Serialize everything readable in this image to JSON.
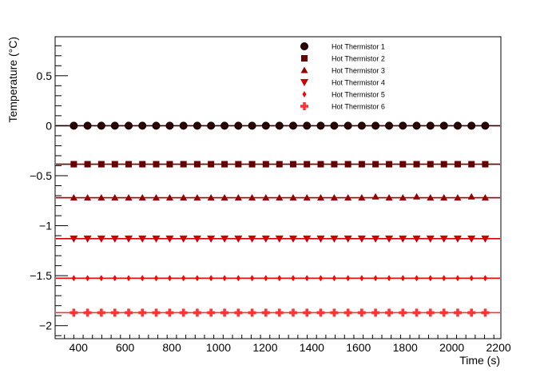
{
  "chart_data": {
    "type": "scatter",
    "xlabel": "Time (s)",
    "ylabel": "Temperature (°C)",
    "xlim": [
      300,
      2210
    ],
    "ylim": [
      -2.13,
      0.89
    ],
    "x_ticks": [
      400,
      600,
      800,
      1000,
      1200,
      1400,
      1600,
      1800,
      2000,
      2200
    ],
    "x_tick_labels": [
      "400",
      "600",
      "800",
      "1000",
      "1200",
      "1400",
      "1600",
      "1800",
      "2000",
      "2200"
    ],
    "y_ticks": [
      0.5,
      0,
      -0.5,
      -1,
      -1.5,
      -2
    ],
    "y_tick_labels": [
      "0.5",
      "0",
      "−0.5",
      "−1",
      "−1.5",
      "−2"
    ],
    "x": [
      380,
      439,
      498,
      556,
      615,
      674,
      733,
      791,
      850,
      909,
      968,
      1026,
      1085,
      1144,
      1203,
      1261,
      1320,
      1379,
      1438,
      1496,
      1555,
      1614,
      1673,
      1731,
      1790,
      1849,
      1908,
      1966,
      2025,
      2084,
      2143
    ],
    "legend_position": "top-right",
    "series": [
      {
        "name": "Hot Thermistor 1",
        "marker": "circle",
        "color": "#330000",
        "level": 0.0,
        "values": [
          0,
          0,
          0,
          0,
          0,
          0,
          0,
          0,
          0,
          0,
          0,
          0,
          0,
          0,
          0,
          0,
          0,
          0,
          0,
          0,
          0,
          0,
          0,
          0,
          0,
          0,
          0,
          0,
          0,
          0,
          0
        ]
      },
      {
        "name": "Hot Thermistor 2",
        "marker": "square",
        "color": "#660000",
        "level": -0.385,
        "values": [
          -0.385,
          -0.385,
          -0.385,
          -0.385,
          -0.385,
          -0.385,
          -0.385,
          -0.385,
          -0.385,
          -0.385,
          -0.385,
          -0.385,
          -0.385,
          -0.385,
          -0.385,
          -0.385,
          -0.385,
          -0.385,
          -0.385,
          -0.385,
          -0.385,
          -0.385,
          -0.385,
          -0.385,
          -0.385,
          -0.385,
          -0.385,
          -0.385,
          -0.385,
          -0.385,
          -0.385
        ]
      },
      {
        "name": "Hot Thermistor 3",
        "marker": "triangle-up",
        "color": "#990000",
        "level": -0.72,
        "values": [
          -0.72,
          -0.72,
          -0.72,
          -0.72,
          -0.72,
          -0.72,
          -0.72,
          -0.72,
          -0.72,
          -0.72,
          -0.72,
          -0.72,
          -0.72,
          -0.72,
          -0.72,
          -0.72,
          -0.72,
          -0.72,
          -0.72,
          -0.72,
          -0.72,
          -0.72,
          -0.71,
          -0.72,
          -0.72,
          -0.71,
          -0.72,
          -0.72,
          -0.72,
          -0.71,
          -0.72
        ]
      },
      {
        "name": "Hot Thermistor 4",
        "marker": "triangle-down",
        "color": "#cc0000",
        "level": -1.13,
        "values": [
          -1.13,
          -1.13,
          -1.13,
          -1.13,
          -1.13,
          -1.13,
          -1.13,
          -1.13,
          -1.13,
          -1.13,
          -1.13,
          -1.13,
          -1.13,
          -1.13,
          -1.13,
          -1.13,
          -1.13,
          -1.13,
          -1.13,
          -1.13,
          -1.13,
          -1.13,
          -1.13,
          -1.13,
          -1.13,
          -1.13,
          -1.13,
          -1.13,
          -1.13,
          -1.13,
          -1.13
        ]
      },
      {
        "name": "Hot Thermistor 5",
        "marker": "diamond",
        "color": "#ff0000",
        "level": -1.525,
        "values": [
          -1.525,
          -1.525,
          -1.525,
          -1.525,
          -1.525,
          -1.525,
          -1.525,
          -1.525,
          -1.525,
          -1.525,
          -1.525,
          -1.525,
          -1.525,
          -1.525,
          -1.525,
          -1.525,
          -1.525,
          -1.525,
          -1.525,
          -1.525,
          -1.525,
          -1.525,
          -1.525,
          -1.525,
          -1.525,
          -1.525,
          -1.525,
          -1.525,
          -1.525,
          -1.525,
          -1.525
        ]
      },
      {
        "name": "Hot Thermistor 6",
        "marker": "cross",
        "color": "#ff3333",
        "level": -1.87,
        "values": [
          -1.87,
          -1.87,
          -1.87,
          -1.87,
          -1.87,
          -1.87,
          -1.87,
          -1.87,
          -1.87,
          -1.87,
          -1.87,
          -1.87,
          -1.87,
          -1.87,
          -1.87,
          -1.87,
          -1.87,
          -1.87,
          -1.87,
          -1.87,
          -1.87,
          -1.87,
          -1.87,
          -1.87,
          -1.87,
          -1.87,
          -1.87,
          -1.87,
          -1.87,
          -1.87,
          -1.87
        ]
      }
    ]
  }
}
